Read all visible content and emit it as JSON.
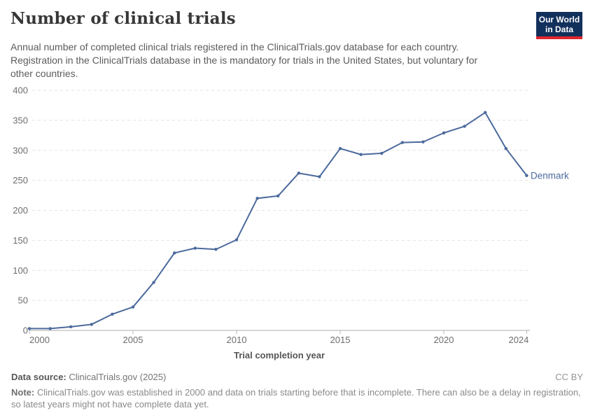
{
  "header": {
    "title": "Number of clinical trials",
    "subtitle_lines": [
      "Annual number of completed clinical trials registered in the ClinicalTrials.gov database for each country.",
      "Registration in the ClinicalTrials database in the is mandatory for trials in the United States, but voluntary for",
      "other countries."
    ],
    "logo": {
      "line1": "Our World",
      "line2": "in Data"
    }
  },
  "chart_data": {
    "type": "line",
    "title": "Number of clinical trials",
    "xlabel": "Trial completion year",
    "ylabel": "",
    "x": [
      2000,
      2001,
      2002,
      2003,
      2004,
      2005,
      2006,
      2007,
      2008,
      2009,
      2010,
      2011,
      2012,
      2013,
      2014,
      2015,
      2016,
      2017,
      2018,
      2019,
      2020,
      2021,
      2022,
      2023,
      2024
    ],
    "series": [
      {
        "name": "Denmark",
        "color": "#4C6A9C",
        "values": [
          3,
          3,
          6,
          10,
          27,
          39,
          80,
          129,
          137,
          135,
          151,
          220,
          224,
          262,
          256,
          303,
          293,
          295,
          313,
          314,
          329,
          340,
          363,
          303,
          258
        ]
      }
    ],
    "ylim": [
      0,
      400
    ],
    "y_ticks": [
      0,
      50,
      100,
      150,
      200,
      250,
      300,
      350,
      400
    ],
    "x_ticks": [
      2000,
      2005,
      2010,
      2015,
      2020,
      2024
    ],
    "grid": "horizontal-dashed",
    "legend_position": "end-of-line-label"
  },
  "footer": {
    "data_source_label": "Data source:",
    "data_source_value": "ClinicalTrials.gov (2025)",
    "license": "CC BY",
    "note_label": "Note:",
    "note_text": "ClinicalTrials.gov was established in 2000 and data on trials starting before that is incomplete. There can also be a delay in registration, so latest years might not have complete data yet."
  },
  "colors": {
    "line": "#4C6A9C",
    "grid": "#e2e2e2",
    "axis": "#adadad",
    "tick": "#b5b5b5",
    "tick_label": "#6e6e6e",
    "logo_bg": "#12305c",
    "logo_red": "#e0262c"
  }
}
